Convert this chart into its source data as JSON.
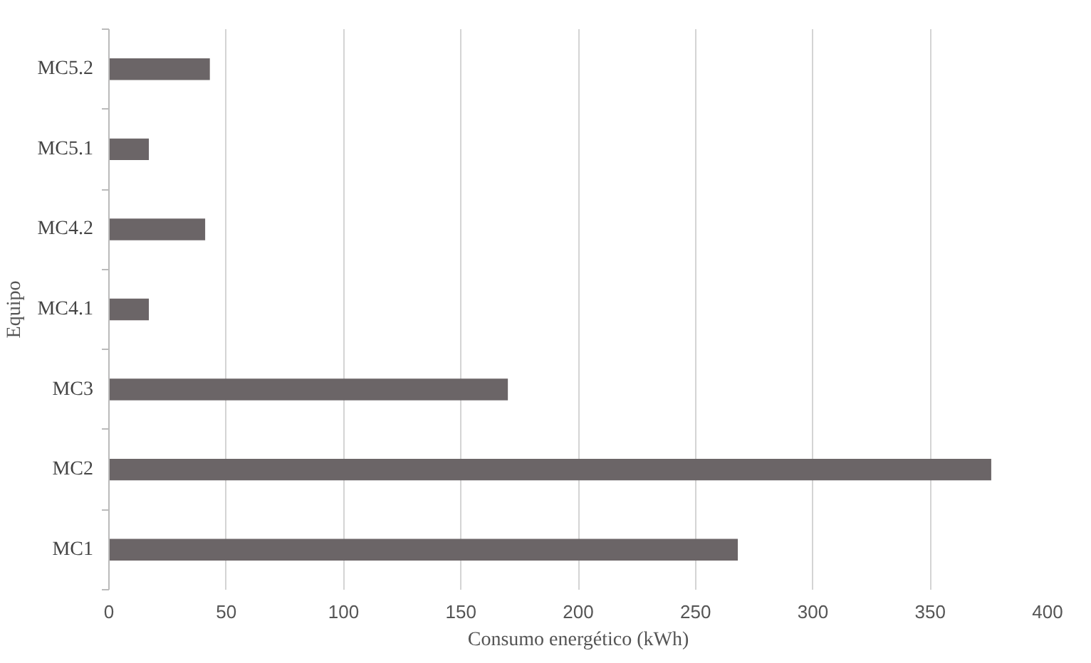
{
  "chart_data": {
    "type": "bar",
    "orientation": "horizontal",
    "xlabel": "Consumo energético (kWh)",
    "ylabel": "Equipo",
    "categories": [
      "MC5.2",
      "MC5.1",
      "MC4.2",
      "MC4.1",
      "MC3",
      "MC2",
      "MC1"
    ],
    "values": [
      43,
      17,
      41,
      17,
      170,
      376,
      268
    ],
    "color": "#6b6567",
    "xlim": [
      0,
      400
    ],
    "xticks": [
      0,
      50,
      100,
      150,
      200,
      250,
      300,
      350,
      400
    ],
    "grid": "x"
  }
}
